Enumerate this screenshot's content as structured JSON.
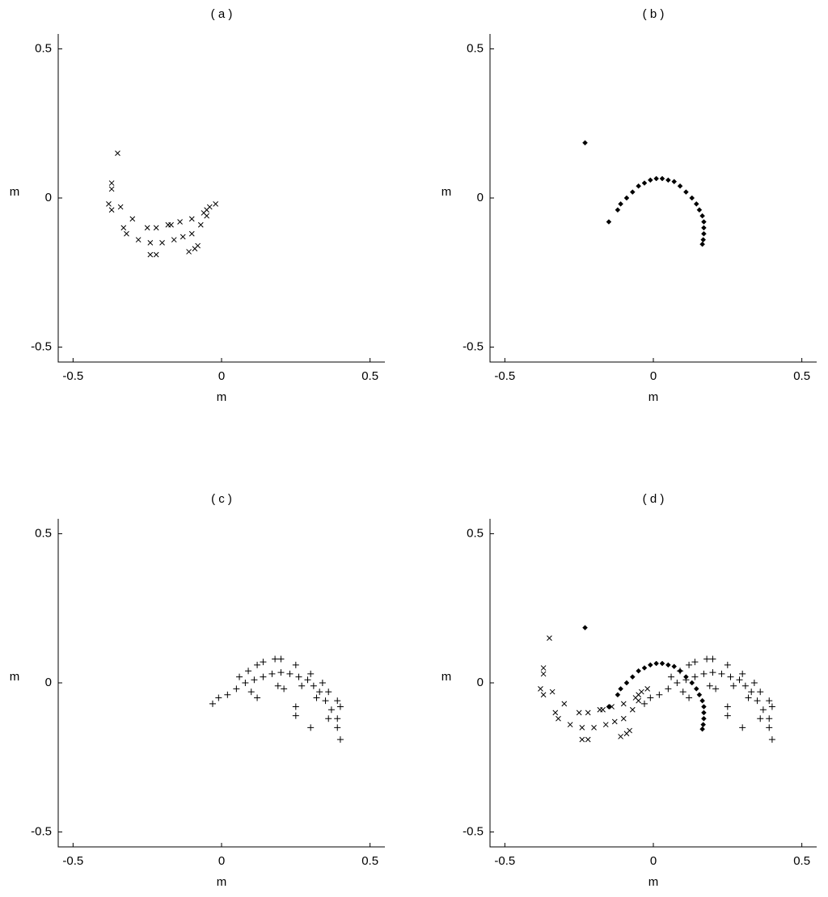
{
  "chart_data": [
    {
      "type": "scatter",
      "title": "( a )",
      "xlabel": "m",
      "ylabel": "m",
      "xlim": [
        -0.55,
        0.55
      ],
      "ylim": [
        -0.55,
        0.55
      ],
      "xticks": [
        -0.5,
        0,
        0.5
      ],
      "yticks": [
        -0.5,
        0,
        0.5
      ],
      "series": [
        {
          "marker": "x",
          "color": "#000000",
          "x": [
            -0.35,
            -0.37,
            -0.37,
            -0.38,
            -0.37,
            -0.34,
            -0.3,
            -0.25,
            -0.22,
            -0.18,
            -0.14,
            -0.1,
            -0.06,
            -0.04,
            -0.02,
            -0.33,
            -0.32,
            -0.28,
            -0.24,
            -0.2,
            -0.16,
            -0.13,
            -0.1,
            -0.07,
            -0.05,
            -0.24,
            -0.22,
            -0.11,
            -0.09,
            -0.08,
            -0.17,
            -0.05
          ],
          "y": [
            0.15,
            0.05,
            0.03,
            -0.02,
            -0.04,
            -0.03,
            -0.07,
            -0.1,
            -0.1,
            -0.09,
            -0.08,
            -0.07,
            -0.05,
            -0.03,
            -0.02,
            -0.1,
            -0.12,
            -0.14,
            -0.15,
            -0.15,
            -0.14,
            -0.13,
            -0.12,
            -0.09,
            -0.06,
            -0.19,
            -0.19,
            -0.18,
            -0.17,
            -0.16,
            -0.09,
            -0.04
          ]
        }
      ]
    },
    {
      "type": "scatter",
      "title": "( b )",
      "xlabel": "m",
      "ylabel": "m",
      "xlim": [
        -0.55,
        0.55
      ],
      "ylim": [
        -0.55,
        0.55
      ],
      "xticks": [
        -0.5,
        0,
        0.5
      ],
      "yticks": [
        -0.5,
        0,
        0.5
      ],
      "series": [
        {
          "marker": "diamond",
          "color": "#000000",
          "x": [
            -0.12,
            -0.11,
            -0.09,
            -0.07,
            -0.05,
            -0.03,
            -0.01,
            0.01,
            0.03,
            0.05,
            0.07,
            0.09,
            0.11,
            0.13,
            0.145,
            0.155,
            0.165,
            0.17,
            0.17,
            0.17,
            0.168,
            0.165,
            -0.23,
            -0.15
          ],
          "y": [
            -0.04,
            -0.02,
            0.0,
            0.02,
            0.04,
            0.05,
            0.06,
            0.065,
            0.065,
            0.06,
            0.055,
            0.04,
            0.02,
            0.0,
            -0.02,
            -0.04,
            -0.06,
            -0.08,
            -0.1,
            -0.12,
            -0.14,
            -0.155,
            0.185,
            -0.08
          ]
        }
      ]
    },
    {
      "type": "scatter",
      "title": "( c )",
      "xlabel": "m",
      "ylabel": "m",
      "xlim": [
        -0.55,
        0.55
      ],
      "ylim": [
        -0.55,
        0.55
      ],
      "xticks": [
        -0.5,
        0,
        0.5
      ],
      "yticks": [
        -0.5,
        0,
        0.5
      ],
      "series": [
        {
          "marker": "+",
          "color": "#000000",
          "x": [
            -0.03,
            -0.01,
            0.02,
            0.05,
            0.08,
            0.11,
            0.14,
            0.17,
            0.2,
            0.23,
            0.26,
            0.29,
            0.31,
            0.33,
            0.35,
            0.37,
            0.39,
            0.06,
            0.09,
            0.12,
            0.14,
            0.18,
            0.2,
            0.25,
            0.3,
            0.34,
            0.36,
            0.39,
            0.4,
            0.1,
            0.12,
            0.19,
            0.21,
            0.25,
            0.25,
            0.3,
            0.36,
            0.39,
            0.4,
            0.32,
            0.27
          ],
          "y": [
            -0.07,
            -0.05,
            -0.04,
            -0.02,
            0.0,
            0.01,
            0.02,
            0.03,
            0.035,
            0.03,
            0.02,
            0.01,
            -0.01,
            -0.03,
            -0.06,
            -0.09,
            -0.12,
            0.02,
            0.04,
            0.06,
            0.07,
            0.08,
            0.08,
            0.06,
            0.03,
            0.0,
            -0.03,
            -0.06,
            -0.08,
            -0.03,
            -0.05,
            -0.01,
            -0.02,
            -0.08,
            -0.11,
            -0.15,
            -0.12,
            -0.15,
            -0.19,
            -0.05,
            -0.01
          ]
        }
      ]
    },
    {
      "type": "scatter",
      "title": "( d )",
      "xlabel": "m",
      "ylabel": "m",
      "xlim": [
        -0.55,
        0.55
      ],
      "ylim": [
        -0.55,
        0.55
      ],
      "xticks": [
        -0.5,
        0,
        0.5
      ],
      "yticks": [
        -0.5,
        0,
        0.5
      ],
      "series": [
        {
          "marker": "x",
          "color": "#000000",
          "x": [
            -0.35,
            -0.37,
            -0.37,
            -0.38,
            -0.37,
            -0.34,
            -0.3,
            -0.25,
            -0.22,
            -0.18,
            -0.14,
            -0.1,
            -0.06,
            -0.04,
            -0.02,
            -0.33,
            -0.32,
            -0.28,
            -0.24,
            -0.2,
            -0.16,
            -0.13,
            -0.1,
            -0.07,
            -0.05,
            -0.24,
            -0.22,
            -0.11,
            -0.09,
            -0.08,
            -0.17,
            -0.05
          ],
          "y": [
            0.15,
            0.05,
            0.03,
            -0.02,
            -0.04,
            -0.03,
            -0.07,
            -0.1,
            -0.1,
            -0.09,
            -0.08,
            -0.07,
            -0.05,
            -0.03,
            -0.02,
            -0.1,
            -0.12,
            -0.14,
            -0.15,
            -0.15,
            -0.14,
            -0.13,
            -0.12,
            -0.09,
            -0.06,
            -0.19,
            -0.19,
            -0.18,
            -0.17,
            -0.16,
            -0.09,
            -0.04
          ]
        },
        {
          "marker": "diamond",
          "color": "#000000",
          "x": [
            -0.12,
            -0.11,
            -0.09,
            -0.07,
            -0.05,
            -0.03,
            -0.01,
            0.01,
            0.03,
            0.05,
            0.07,
            0.09,
            0.11,
            0.13,
            0.145,
            0.155,
            0.165,
            0.17,
            0.17,
            0.17,
            0.168,
            0.165,
            -0.23,
            -0.15
          ],
          "y": [
            -0.04,
            -0.02,
            0.0,
            0.02,
            0.04,
            0.05,
            0.06,
            0.065,
            0.065,
            0.06,
            0.055,
            0.04,
            0.02,
            0.0,
            -0.02,
            -0.04,
            -0.06,
            -0.08,
            -0.1,
            -0.12,
            -0.14,
            -0.155,
            0.185,
            -0.08
          ]
        },
        {
          "marker": "+",
          "color": "#000000",
          "x": [
            -0.03,
            -0.01,
            0.02,
            0.05,
            0.08,
            0.11,
            0.14,
            0.17,
            0.2,
            0.23,
            0.26,
            0.29,
            0.31,
            0.33,
            0.35,
            0.37,
            0.39,
            0.06,
            0.09,
            0.12,
            0.14,
            0.18,
            0.2,
            0.25,
            0.3,
            0.34,
            0.36,
            0.39,
            0.4,
            0.1,
            0.12,
            0.19,
            0.21,
            0.25,
            0.25,
            0.3,
            0.36,
            0.39,
            0.4,
            0.32,
            0.27
          ],
          "y": [
            -0.07,
            -0.05,
            -0.04,
            -0.02,
            0.0,
            0.01,
            0.02,
            0.03,
            0.035,
            0.03,
            0.02,
            0.01,
            -0.01,
            -0.03,
            -0.06,
            -0.09,
            -0.12,
            0.02,
            0.04,
            0.06,
            0.07,
            0.08,
            0.08,
            0.06,
            0.03,
            0.0,
            -0.03,
            -0.06,
            -0.08,
            -0.03,
            -0.05,
            -0.01,
            -0.02,
            -0.08,
            -0.11,
            -0.15,
            -0.12,
            -0.15,
            -0.19,
            -0.05,
            -0.01
          ]
        }
      ]
    }
  ]
}
